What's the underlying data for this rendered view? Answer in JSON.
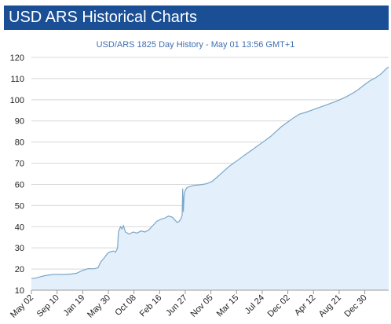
{
  "header": {
    "title": "USD ARS Historical Charts"
  },
  "colors": {
    "header_bg": "#1a4f95",
    "line": "#7aa6c8",
    "area": "#e3effa",
    "grid": "#d8d8d8",
    "subtitle": "#3f6fb0"
  },
  "chart_data": {
    "type": "area",
    "title": "USD/ARS 1825 Day History - May 01 13:56 GMT+1",
    "xlabel": "",
    "ylabel": "",
    "ylim": [
      10,
      120
    ],
    "yticks": [
      10,
      20,
      30,
      40,
      50,
      60,
      70,
      80,
      90,
      100,
      110,
      120
    ],
    "xlim": [
      0,
      1825
    ],
    "xticks": [
      {
        "label": "May 02",
        "t": 0
      },
      {
        "label": "Sep 10",
        "t": 131
      },
      {
        "label": "Jan 19",
        "t": 262
      },
      {
        "label": "May 30",
        "t": 393
      },
      {
        "label": "Oct 08",
        "t": 524
      },
      {
        "label": "Feb 16",
        "t": 655
      },
      {
        "label": "Jun 27",
        "t": 786
      },
      {
        "label": "Nov 05",
        "t": 917
      },
      {
        "label": "Mar 15",
        "t": 1048
      },
      {
        "label": "Jul 24",
        "t": 1179
      },
      {
        "label": "Dec 02",
        "t": 1310
      },
      {
        "label": "Apr 12",
        "t": 1441
      },
      {
        "label": "Aug 21",
        "t": 1572
      },
      {
        "label": "Dec 30",
        "t": 1703
      }
    ],
    "series": [
      {
        "name": "USD/ARS",
        "points": [
          [
            0,
            15.5
          ],
          [
            20,
            15.7
          ],
          [
            40,
            16.2
          ],
          [
            70,
            16.9
          ],
          [
            100,
            17.3
          ],
          [
            130,
            17.5
          ],
          [
            160,
            17.4
          ],
          [
            200,
            17.6
          ],
          [
            230,
            18.0
          ],
          [
            260,
            19.3
          ],
          [
            290,
            20.2
          ],
          [
            320,
            20.1
          ],
          [
            340,
            20.6
          ],
          [
            355,
            23.5
          ],
          [
            370,
            25.0
          ],
          [
            390,
            27.5
          ],
          [
            405,
            28.2
          ],
          [
            420,
            28.5
          ],
          [
            430,
            28.0
          ],
          [
            440,
            30.0
          ],
          [
            445,
            37.5
          ],
          [
            455,
            40.0
          ],
          [
            462,
            39.0
          ],
          [
            470,
            40.5
          ],
          [
            480,
            37.5
          ],
          [
            500,
            36.5
          ],
          [
            520,
            37.5
          ],
          [
            540,
            37.0
          ],
          [
            560,
            38.0
          ],
          [
            580,
            37.5
          ],
          [
            600,
            38.5
          ],
          [
            620,
            40.5
          ],
          [
            640,
            42.5
          ],
          [
            660,
            43.5
          ],
          [
            680,
            44.0
          ],
          [
            700,
            45.0
          ],
          [
            720,
            44.5
          ],
          [
            735,
            43.0
          ],
          [
            745,
            42.0
          ],
          [
            755,
            42.5
          ],
          [
            765,
            44.0
          ],
          [
            770,
            45.5
          ],
          [
            773,
            58.0
          ],
          [
            776,
            47.0
          ],
          [
            780,
            55.0
          ],
          [
            785,
            57.0
          ],
          [
            795,
            58.5
          ],
          [
            810,
            59.0
          ],
          [
            830,
            59.5
          ],
          [
            860,
            59.8
          ],
          [
            890,
            60.2
          ],
          [
            920,
            61.2
          ],
          [
            950,
            63.5
          ],
          [
            980,
            66.0
          ],
          [
            1010,
            68.5
          ],
          [
            1040,
            70.5
          ],
          [
            1070,
            72.5
          ],
          [
            1100,
            74.5
          ],
          [
            1130,
            76.5
          ],
          [
            1160,
            78.5
          ],
          [
            1190,
            80.5
          ],
          [
            1220,
            82.5
          ],
          [
            1250,
            85.0
          ],
          [
            1280,
            87.5
          ],
          [
            1310,
            89.5
          ],
          [
            1340,
            91.5
          ],
          [
            1370,
            93.2
          ],
          [
            1400,
            94.0
          ],
          [
            1430,
            95.0
          ],
          [
            1460,
            96.0
          ],
          [
            1490,
            97.0
          ],
          [
            1520,
            98.0
          ],
          [
            1550,
            99.0
          ],
          [
            1580,
            100.2
          ],
          [
            1610,
            101.5
          ],
          [
            1640,
            103.0
          ],
          [
            1670,
            104.8
          ],
          [
            1700,
            107.0
          ],
          [
            1730,
            109.0
          ],
          [
            1760,
            110.5
          ],
          [
            1790,
            112.5
          ],
          [
            1810,
            114.5
          ],
          [
            1825,
            115.5
          ]
        ]
      }
    ]
  }
}
